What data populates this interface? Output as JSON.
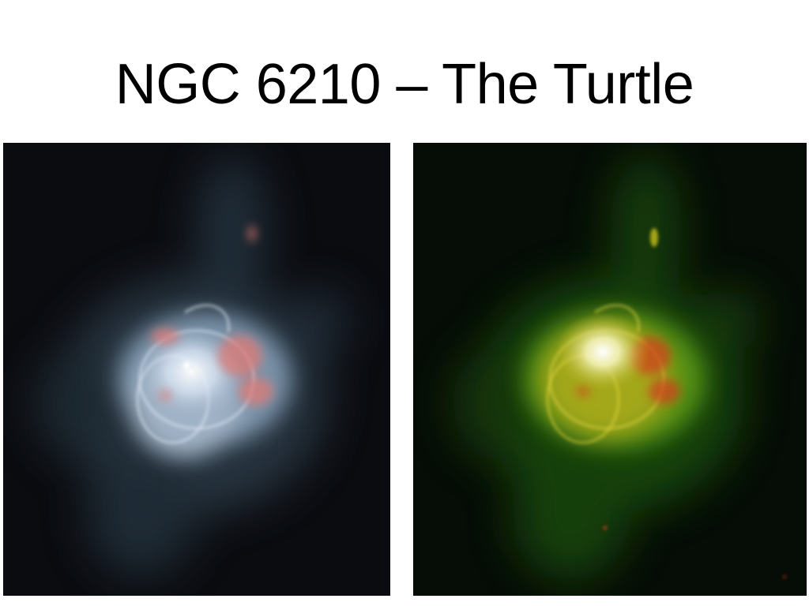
{
  "slide": {
    "title": "NGC 6210 – The Turtle"
  },
  "images": [
    {
      "name": "nebula-visible-color",
      "palette": {
        "background": "#0b0c10",
        "halo": "#4f6b7d",
        "shell": "#c9d8ee",
        "core": "#ffffff",
        "knots": "#e07a74"
      }
    },
    {
      "name": "nebula-false-color",
      "palette": {
        "background": "#060d06",
        "halo": "#2f7a12",
        "shell": "#c8c21a",
        "core": "#ffffff",
        "knots": "#d23a1a"
      }
    }
  ]
}
